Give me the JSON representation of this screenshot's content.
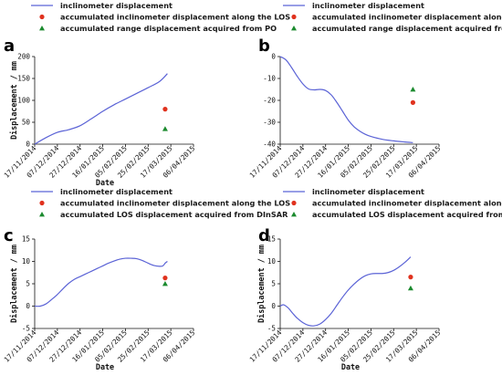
{
  "x_ticks": [
    "17/11/2014",
    "07/12/2014",
    "27/12/2014",
    "16/01/2015",
    "05/02/2015",
    "25/02/2015",
    "17/03/2015",
    "06/04/2015"
  ],
  "colors": {
    "line": "#5b63d6",
    "point_los": "#e0321e",
    "point_other": "#1b8a2e",
    "axis": "#111111"
  },
  "panels": [
    {
      "letter": "a",
      "legend": [
        {
          "label": "inclinometer displacement",
          "marker": "line"
        },
        {
          "label": "accumulated inclinometer displacement along the LOS",
          "marker": "red-dot"
        },
        {
          "label": "accumulated range displacement acquired from PO",
          "marker": "green-triangle"
        }
      ],
      "ylabel": "Displacement / mm",
      "xlabel": "Date"
    },
    {
      "letter": "b",
      "legend": [
        {
          "label": "inclinometer displacement",
          "marker": "line"
        },
        {
          "label": "accumulated inclinometer displacement along the LOS",
          "marker": "red-dot"
        },
        {
          "label": "accumulated range displacement acquired from PO",
          "marker": "green-triangle"
        }
      ],
      "ylabel": "",
      "xlabel": ""
    },
    {
      "letter": "c",
      "legend": [
        {
          "label": "inclinometer displacement",
          "marker": "line"
        },
        {
          "label": "accumulated inclinometer displacement along the LOS",
          "marker": "red-dot"
        },
        {
          "label": "accumulated LOS displacement acquired from DInSAR",
          "marker": "green-triangle"
        }
      ],
      "ylabel": "Displacement / mm",
      "xlabel": "Date"
    },
    {
      "letter": "d",
      "legend": [
        {
          "label": "inclinometer displacement",
          "marker": "line"
        },
        {
          "label": "accumulated inclinometer displacement along the LOS",
          "marker": "red-dot"
        },
        {
          "label": "accumulated LOS displacement acquired from DInSAR",
          "marker": "green-triangle"
        }
      ],
      "ylabel": "Displacement / mm",
      "xlabel": "Date"
    }
  ],
  "chart_data": [
    {
      "type": "line",
      "ylim": [
        0,
        200
      ],
      "yticks": [
        0,
        50,
        100,
        150,
        200
      ],
      "line": {
        "x": [
          "2014-11-17",
          "2014-11-27",
          "2014-12-07",
          "2014-12-17",
          "2014-12-27",
          "2015-01-06",
          "2015-01-16",
          "2015-01-26",
          "2015-02-05",
          "2015-02-15",
          "2015-02-25",
          "2015-03-07",
          "2015-03-14"
        ],
        "y": [
          0,
          15,
          27,
          33,
          42,
          58,
          75,
          90,
          103,
          116,
          129,
          143,
          161
        ]
      },
      "points": [
        {
          "marker": "red-dot",
          "x": "2015-03-12",
          "y": 80
        },
        {
          "marker": "green-triangle",
          "x": "2015-03-12",
          "y": 35
        }
      ]
    },
    {
      "type": "line",
      "ylim": [
        -40,
        0
      ],
      "yticks": [
        -40,
        -30,
        -20,
        -10,
        0
      ],
      "line": {
        "x": [
          "2014-11-17",
          "2014-11-22",
          "2014-11-27",
          "2014-12-02",
          "2014-12-07",
          "2014-12-12",
          "2014-12-17",
          "2014-12-22",
          "2014-12-27",
          "2015-01-01",
          "2015-01-06",
          "2015-01-11",
          "2015-01-16",
          "2015-01-21",
          "2015-01-26",
          "2015-01-31",
          "2015-02-05",
          "2015-02-15",
          "2015-02-25",
          "2015-03-07",
          "2015-03-14"
        ],
        "y": [
          0,
          -1.5,
          -5,
          -9,
          -12.5,
          -14.8,
          -15.2,
          -15,
          -15.5,
          -17.5,
          -21,
          -25,
          -29,
          -32,
          -34,
          -35.5,
          -36.5,
          -37.8,
          -38.5,
          -39,
          -39.3
        ]
      },
      "points": [
        {
          "marker": "red-dot",
          "x": "2015-03-14",
          "y": -21
        },
        {
          "marker": "green-triangle",
          "x": "2015-03-14",
          "y": -15
        }
      ]
    },
    {
      "type": "line",
      "ylim": [
        -5,
        15
      ],
      "yticks": [
        -5,
        0,
        5,
        10,
        15
      ],
      "line": {
        "x": [
          "2014-11-17",
          "2014-11-22",
          "2014-11-27",
          "2014-12-02",
          "2014-12-07",
          "2014-12-12",
          "2014-12-17",
          "2014-12-22",
          "2014-12-27",
          "2015-01-01",
          "2015-01-06",
          "2015-01-11",
          "2015-01-16",
          "2015-01-21",
          "2015-01-26",
          "2015-01-31",
          "2015-02-05",
          "2015-02-10",
          "2015-02-15",
          "2015-02-20",
          "2015-02-25",
          "2015-03-02",
          "2015-03-07",
          "2015-03-10",
          "2015-03-12",
          "2015-03-14"
        ],
        "y": [
          0,
          0,
          0.5,
          1.5,
          2.6,
          3.9,
          5.1,
          6.0,
          6.6,
          7.2,
          7.8,
          8.4,
          9.0,
          9.6,
          10.1,
          10.5,
          10.7,
          10.7,
          10.6,
          10.2,
          9.6,
          9.1,
          8.9,
          9.0,
          9.6,
          10.0
        ]
      },
      "points": [
        {
          "marker": "red-dot",
          "x": "2015-03-12",
          "y": 6.3
        },
        {
          "marker": "green-triangle",
          "x": "2015-03-12",
          "y": 5.0
        }
      ]
    },
    {
      "type": "line",
      "ylim": [
        -5,
        15
      ],
      "yticks": [
        -5,
        0,
        5,
        10,
        15
      ],
      "line": {
        "x": [
          "2014-11-17",
          "2014-11-20",
          "2014-11-24",
          "2014-11-28",
          "2014-12-02",
          "2014-12-07",
          "2014-12-12",
          "2014-12-17",
          "2014-12-22",
          "2014-12-27",
          "2015-01-01",
          "2015-01-06",
          "2015-01-11",
          "2015-01-16",
          "2015-01-21",
          "2015-01-26",
          "2015-01-31",
          "2015-02-05",
          "2015-02-10",
          "2015-02-15",
          "2015-02-20",
          "2015-02-25",
          "2015-03-02",
          "2015-03-07",
          "2015-03-12"
        ],
        "y": [
          0,
          0.3,
          -0.4,
          -1.6,
          -2.7,
          -3.7,
          -4.3,
          -4.4,
          -4.0,
          -3.0,
          -1.6,
          0.2,
          2.0,
          3.6,
          4.9,
          6.0,
          6.8,
          7.2,
          7.3,
          7.3,
          7.5,
          8.0,
          8.8,
          9.8,
          11.0
        ]
      },
      "points": [
        {
          "marker": "red-dot",
          "x": "2015-03-12",
          "y": 6.5
        },
        {
          "marker": "green-triangle",
          "x": "2015-03-12",
          "y": 4.0
        }
      ]
    }
  ]
}
